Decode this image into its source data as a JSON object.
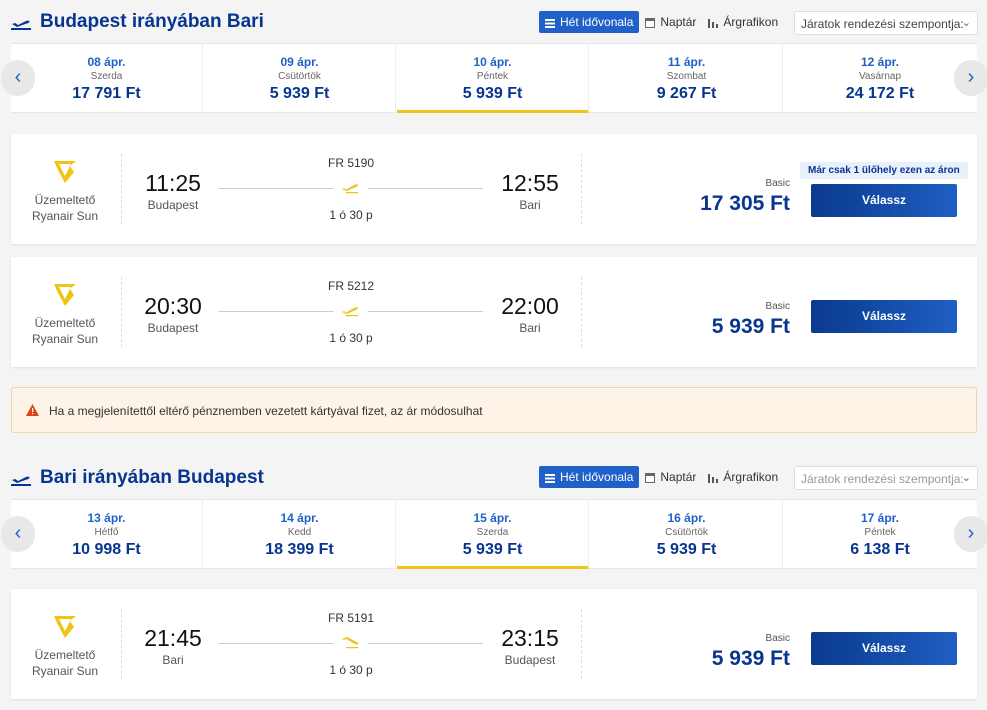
{
  "outbound": {
    "title": "Budapest irányában Bari",
    "toggle": {
      "timeline": "Hét idővonala",
      "calendar": "Naptár",
      "pricegraph": "Árgrafikon"
    },
    "sort_placeholder": "Járatok rendezési szempontja:",
    "dates": [
      {
        "date": "08 ápr.",
        "weekday": "Szerda",
        "price": "17 791 Ft"
      },
      {
        "date": "09 ápr.",
        "weekday": "Csütörtök",
        "price": "5 939 Ft"
      },
      {
        "date": "10 ápr.",
        "weekday": "Péntek",
        "price": "5 939 Ft"
      },
      {
        "date": "11 ápr.",
        "weekday": "Szombat",
        "price": "9 267 Ft"
      },
      {
        "date": "12 ápr.",
        "weekday": "Vasárnap",
        "price": "24 172 Ft"
      }
    ],
    "flights": [
      {
        "operator": "Üzemeltető",
        "airline": "Ryanair Sun",
        "dep_time": "11:25",
        "dep_place": "Budapest",
        "flight_no": "FR 5190",
        "duration": "1 ó 30 p",
        "arr_time": "12:55",
        "arr_place": "Bari",
        "fare": "Basic",
        "price": "17 305 Ft",
        "badge": "Már csak 1 ülőhely ezen az áron",
        "button": "Válassz"
      },
      {
        "operator": "Üzemeltető",
        "airline": "Ryanair Sun",
        "dep_time": "20:30",
        "dep_place": "Budapest",
        "flight_no": "FR 5212",
        "duration": "1 ó 30 p",
        "arr_time": "22:00",
        "arr_place": "Bari",
        "fare": "Basic",
        "price": "5 939 Ft",
        "button": "Válassz"
      }
    ]
  },
  "warning": "Ha a megjelenítettől eltérő pénznemben vezetett kártyával fizet, az ár módosulhat",
  "inbound": {
    "title": "Bari irányában Budapest",
    "toggle": {
      "timeline": "Hét idővonala",
      "calendar": "Naptár",
      "pricegraph": "Árgrafikon"
    },
    "sort_placeholder": "Járatok rendezési szempontja:",
    "dates": [
      {
        "date": "13 ápr.",
        "weekday": "Hétfő",
        "price": "10 998 Ft"
      },
      {
        "date": "14 ápr.",
        "weekday": "Kedd",
        "price": "18 399 Ft"
      },
      {
        "date": "15 ápr.",
        "weekday": "Szerda",
        "price": "5 939 Ft"
      },
      {
        "date": "16 ápr.",
        "weekday": "Csütörtök",
        "price": "5 939 Ft"
      },
      {
        "date": "17 ápr.",
        "weekday": "Péntek",
        "price": "6 138 Ft"
      }
    ],
    "flights": [
      {
        "operator": "Üzemeltető",
        "airline": "Ryanair Sun",
        "dep_time": "21:45",
        "dep_place": "Bari",
        "flight_no": "FR 5191",
        "duration": "1 ó 30 p",
        "arr_time": "23:15",
        "arr_place": "Budapest",
        "fare": "Basic",
        "price": "5 939 Ft",
        "button": "Válassz"
      }
    ]
  },
  "colors": {
    "brand": "#073590",
    "accent": "#1f61c9",
    "highlight": "#f0c417",
    "warning_bg": "#fdf3e6"
  }
}
